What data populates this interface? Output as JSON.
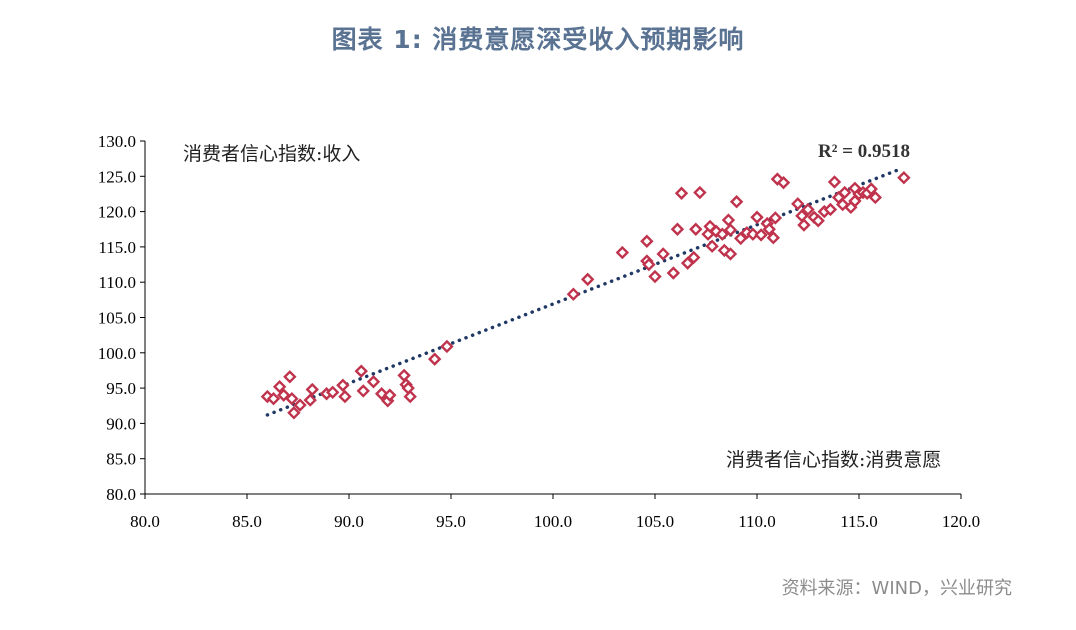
{
  "title": "图表 1:  消费意愿深受收入预期影响",
  "source": "资料来源：WIND，兴业研究",
  "colors": {
    "marker": "#c0334d",
    "trend": "#1f3864",
    "title": "#5a7393"
  },
  "chart_data": {
    "type": "scatter",
    "title": "图表 1:  消费意愿深受收入预期影响",
    "xlabel": "消费者信心指数:消费意愿",
    "ylabel": "消费者信心指数:收入",
    "xlim": [
      80,
      120
    ],
    "ylim": [
      80,
      130
    ],
    "xticks": [
      "80.0",
      "85.0",
      "90.0",
      "95.0",
      "100.0",
      "105.0",
      "110.0",
      "115.0",
      "120.0"
    ],
    "yticks": [
      "80.0",
      "85.0",
      "90.0",
      "95.0",
      "100.0",
      "105.0",
      "110.0",
      "115.0",
      "120.0",
      "125.0",
      "130.0"
    ],
    "r2_label": "R² = 0.9518",
    "trendline": {
      "x": [
        86.0,
        117.0
      ],
      "y": [
        91.2,
        126.0
      ],
      "style": "dotted"
    },
    "grid": false,
    "marker": "diamond",
    "points": [
      [
        86.0,
        93.8
      ],
      [
        86.3,
        93.5
      ],
      [
        86.6,
        95.2
      ],
      [
        86.8,
        94.0
      ],
      [
        87.1,
        96.6
      ],
      [
        87.3,
        91.5
      ],
      [
        87.6,
        92.6
      ],
      [
        87.2,
        93.5
      ],
      [
        88.2,
        94.8
      ],
      [
        88.1,
        93.3
      ],
      [
        88.9,
        94.2
      ],
      [
        89.2,
        94.4
      ],
      [
        89.7,
        95.4
      ],
      [
        89.8,
        93.8
      ],
      [
        90.6,
        97.4
      ],
      [
        90.7,
        94.6
      ],
      [
        91.2,
        95.9
      ],
      [
        91.6,
        94.2
      ],
      [
        91.9,
        93.2
      ],
      [
        92.0,
        94.0
      ],
      [
        92.7,
        96.8
      ],
      [
        92.8,
        95.5
      ],
      [
        92.9,
        95.0
      ],
      [
        93.0,
        93.8
      ],
      [
        94.2,
        99.1
      ],
      [
        94.8,
        100.9
      ],
      [
        101.0,
        108.3
      ],
      [
        101.7,
        110.4
      ],
      [
        103.4,
        114.2
      ],
      [
        104.6,
        115.8
      ],
      [
        104.6,
        113.0
      ],
      [
        104.7,
        112.5
      ],
      [
        105.0,
        110.8
      ],
      [
        105.4,
        114.0
      ],
      [
        105.9,
        111.3
      ],
      [
        106.1,
        117.5
      ],
      [
        106.3,
        122.6
      ],
      [
        106.6,
        112.7
      ],
      [
        106.9,
        113.5
      ],
      [
        107.0,
        117.5
      ],
      [
        107.2,
        122.7
      ],
      [
        107.6,
        116.8
      ],
      [
        107.7,
        117.9
      ],
      [
        107.8,
        115.1
      ],
      [
        108.0,
        117.2
      ],
      [
        108.3,
        116.8
      ],
      [
        108.4,
        114.5
      ],
      [
        108.6,
        118.8
      ],
      [
        108.7,
        114.0
      ],
      [
        108.7,
        117.4
      ],
      [
        109.0,
        121.4
      ],
      [
        109.2,
        116.2
      ],
      [
        109.5,
        117.0
      ],
      [
        109.8,
        116.8
      ],
      [
        110.0,
        119.2
      ],
      [
        110.2,
        116.7
      ],
      [
        110.5,
        118.3
      ],
      [
        110.6,
        117.5
      ],
      [
        110.8,
        116.3
      ],
      [
        110.9,
        119.1
      ],
      [
        111.0,
        124.6
      ],
      [
        111.3,
        124.1
      ],
      [
        112.0,
        121.1
      ],
      [
        112.2,
        119.4
      ],
      [
        112.3,
        118.1
      ],
      [
        112.5,
        120.3
      ],
      [
        112.8,
        119.2
      ],
      [
        113.0,
        118.7
      ],
      [
        113.3,
        120.0
      ],
      [
        113.6,
        120.3
      ],
      [
        113.8,
        124.2
      ],
      [
        114.0,
        122.0
      ],
      [
        114.2,
        121.0
      ],
      [
        114.3,
        122.7
      ],
      [
        114.6,
        120.6
      ],
      [
        114.8,
        121.5
      ],
      [
        114.8,
        123.3
      ],
      [
        115.0,
        122.5
      ],
      [
        115.2,
        122.7
      ],
      [
        115.4,
        122.6
      ],
      [
        115.6,
        123.2
      ],
      [
        115.8,
        122.0
      ],
      [
        117.2,
        124.8
      ]
    ]
  }
}
